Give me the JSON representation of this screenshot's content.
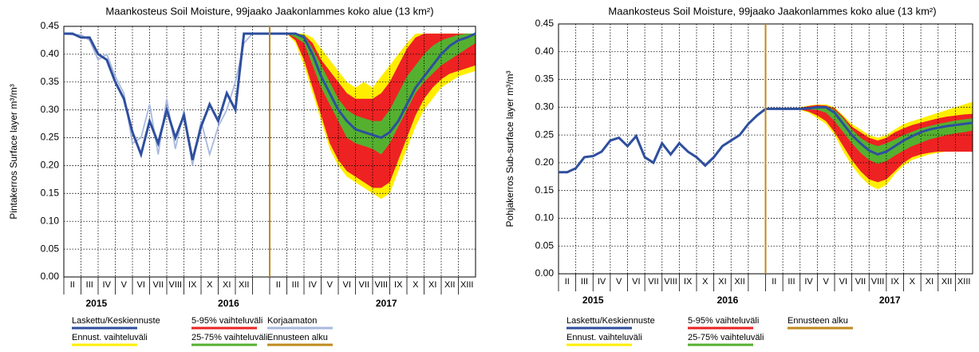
{
  "chart_data": [
    {
      "type": "line",
      "title": "Maankosteus Soil Moisture, 99jaako Jaakonlammes koko alue (13 km²)",
      "y_label": "Pintakerros Surface layer m³/m³",
      "ylim": [
        0,
        0.45
      ],
      "yticks": [
        {
          "value": 0,
          "label": "0.00"
        },
        {
          "value": 0.05,
          "label": "0.05"
        },
        {
          "value": 0.1,
          "label": "0.10"
        },
        {
          "value": 0.15,
          "label": "0.15"
        },
        {
          "value": 0.2,
          "label": "0.20"
        },
        {
          "value": 0.25,
          "label": "0.25"
        },
        {
          "value": 0.3,
          "label": "0.30"
        },
        {
          "value": 0.35,
          "label": "0.35"
        },
        {
          "value": 0.4,
          "label": "0.40"
        },
        {
          "value": 0.45,
          "label": "0.45"
        }
      ],
      "grid": true,
      "xlim": [
        0,
        24
      ],
      "categories": [
        "II",
        "III",
        "IV",
        "V",
        "VI",
        "VII",
        "VIII",
        "IX",
        "X",
        "XI",
        "XII",
        null,
        "II",
        "III",
        "IV",
        "V",
        "VI",
        "VII",
        "VIII",
        "IX",
        "X",
        "XI",
        "XII",
        "XIII"
      ],
      "year_labels": [
        "2015",
        "2016",
        "2017"
      ],
      "x": [
        0,
        0.5,
        1,
        1.5,
        2,
        2.5,
        3,
        3.5,
        4,
        4.5,
        5,
        5.5,
        6,
        6.5,
        7,
        7.5,
        8,
        8.5,
        9,
        9.5,
        10,
        10.5,
        11,
        11.5,
        12,
        12.5,
        13,
        13.5,
        14,
        14.5,
        15,
        15.5,
        16,
        16.5,
        17,
        17.5,
        18,
        18.5,
        19,
        19.5,
        20,
        20.5,
        21,
        21.5,
        22,
        22.5,
        23,
        23.5,
        24
      ],
      "series": [
        {
          "name": "Laskettu/Keskiennuste",
          "color": "#2e4f9e",
          "values": [
            0.437,
            0.437,
            0.43,
            0.43,
            0.4,
            0.39,
            0.35,
            0.32,
            0.26,
            0.22,
            0.28,
            0.24,
            0.3,
            0.25,
            0.29,
            0.21,
            0.27,
            0.31,
            0.28,
            0.33,
            0.3,
            0.437,
            0.437,
            0.437,
            0.437,
            0.437,
            0.437,
            0.437,
            0.43,
            0.4,
            0.36,
            0.33,
            0.3,
            0.28,
            0.265,
            0.26,
            0.255,
            0.25,
            0.26,
            0.28,
            0.31,
            0.34,
            0.36,
            0.38,
            0.4,
            0.415,
            0.425,
            0.43,
            0.437
          ]
        },
        {
          "name": "Korjaamaton",
          "color": "#a9b8de",
          "values": [
            0.437,
            0.435,
            0.435,
            0.425,
            0.39,
            0.4,
            0.36,
            0.33,
            0.24,
            0.25,
            0.31,
            0.22,
            0.32,
            0.23,
            0.3,
            0.2,
            0.28,
            0.22,
            0.27,
            0.3,
            0.35,
            0.42,
            0.437,
            null,
            null,
            null,
            null,
            null,
            null,
            null,
            null,
            null,
            null,
            null,
            null,
            null,
            null,
            null,
            null,
            null,
            null,
            null,
            null,
            null,
            null,
            null,
            null,
            null,
            null
          ]
        }
      ],
      "forecast_x": [
        12.5,
        13,
        13.5,
        14,
        14.5,
        15,
        15.5,
        16,
        16.5,
        17,
        17.5,
        18,
        18.5,
        19,
        19.5,
        20,
        20.5,
        21,
        21.5,
        22,
        22.5,
        23,
        23.5,
        24
      ],
      "bands": [
        {
          "name": "Ennust. vaihteluväli",
          "color": "#ffee00",
          "high": [
            0.437,
            0.437,
            0.437,
            0.437,
            0.43,
            0.41,
            0.39,
            0.37,
            0.35,
            0.34,
            0.35,
            0.34,
            0.36,
            0.38,
            0.4,
            0.42,
            0.437,
            0.437,
            0.437,
            0.437,
            0.437,
            0.437,
            0.437,
            0.437
          ],
          "low": [
            0.437,
            0.437,
            0.42,
            0.38,
            0.33,
            0.28,
            0.23,
            0.2,
            0.18,
            0.17,
            0.16,
            0.15,
            0.14,
            0.15,
            0.19,
            0.23,
            0.27,
            0.3,
            0.32,
            0.34,
            0.35,
            0.36,
            0.365,
            0.37
          ]
        },
        {
          "name": "5-95% vaihteluväli",
          "color": "#ee2222",
          "high": [
            0.437,
            0.437,
            0.437,
            0.435,
            0.42,
            0.39,
            0.37,
            0.35,
            0.33,
            0.32,
            0.32,
            0.32,
            0.33,
            0.35,
            0.38,
            0.41,
            0.43,
            0.437,
            0.437,
            0.437,
            0.437,
            0.437,
            0.437,
            0.437
          ],
          "low": [
            0.437,
            0.437,
            0.425,
            0.39,
            0.34,
            0.29,
            0.24,
            0.21,
            0.19,
            0.18,
            0.17,
            0.16,
            0.16,
            0.17,
            0.21,
            0.25,
            0.29,
            0.32,
            0.34,
            0.355,
            0.365,
            0.37,
            0.375,
            0.38
          ]
        },
        {
          "name": "25-75% vaihteluväli",
          "color": "#55b030",
          "high": [
            0.437,
            0.437,
            0.437,
            0.435,
            0.41,
            0.38,
            0.35,
            0.32,
            0.3,
            0.29,
            0.285,
            0.28,
            0.28,
            0.3,
            0.33,
            0.36,
            0.38,
            0.4,
            0.415,
            0.425,
            0.43,
            0.435,
            0.437,
            0.437
          ],
          "low": [
            0.437,
            0.437,
            0.43,
            0.42,
            0.38,
            0.34,
            0.31,
            0.28,
            0.25,
            0.24,
            0.235,
            0.23,
            0.22,
            0.24,
            0.27,
            0.3,
            0.33,
            0.35,
            0.365,
            0.38,
            0.39,
            0.4,
            0.41,
            0.42
          ]
        }
      ],
      "forecast_start": {
        "name": "Ennusteen alku",
        "color": "#c08a1e",
        "x": 12
      }
    },
    {
      "type": "line",
      "title": "Maankosteus Soil Moisture, 99jaako Jaakonlammes koko alue (13 km²)",
      "y_label": "Pohjakerros Sub-surface layer m³/m³",
      "ylim": [
        0,
        0.45
      ],
      "yticks": [
        {
          "value": 0,
          "label": "0.00"
        },
        {
          "value": 0.05,
          "label": "0.05"
        },
        {
          "value": 0.1,
          "label": "0.10"
        },
        {
          "value": 0.15,
          "label": "0.15"
        },
        {
          "value": 0.2,
          "label": "0.20"
        },
        {
          "value": 0.25,
          "label": "0.25"
        },
        {
          "value": 0.3,
          "label": "0.30"
        },
        {
          "value": 0.35,
          "label": "0.35"
        },
        {
          "value": 0.4,
          "label": "0.40"
        },
        {
          "value": 0.45,
          "label": "0.45"
        }
      ],
      "grid": true,
      "xlim": [
        0,
        24
      ],
      "categories": [
        "II",
        "III",
        "IV",
        "V",
        "VI",
        "VII",
        "VIII",
        "IX",
        "X",
        "XI",
        "XII",
        null,
        "II",
        "III",
        "IV",
        "V",
        "VI",
        "VII",
        "VIII",
        "IX",
        "X",
        "XI",
        "XII",
        "XIII"
      ],
      "year_labels": [
        "2015",
        "2016",
        "2017"
      ],
      "x": [
        0,
        0.5,
        1,
        1.5,
        2,
        2.5,
        3,
        3.5,
        4,
        4.5,
        5,
        5.5,
        6,
        6.5,
        7,
        7.5,
        8,
        8.5,
        9,
        9.5,
        10,
        10.5,
        11,
        11.5,
        12,
        12.5,
        13,
        13.5,
        14,
        14.5,
        15,
        15.5,
        16,
        16.5,
        17,
        17.5,
        18,
        18.5,
        19,
        19.5,
        20,
        20.5,
        21,
        21.5,
        22,
        22.5,
        23,
        23.5,
        24
      ],
      "series": [
        {
          "name": "Laskettu/Keskiennuste",
          "color": "#2e4f9e",
          "values": [
            0.183,
            0.183,
            0.19,
            0.21,
            0.212,
            0.22,
            0.24,
            0.245,
            0.23,
            0.248,
            0.21,
            0.2,
            0.235,
            0.215,
            0.235,
            0.22,
            0.21,
            0.195,
            0.21,
            0.23,
            0.24,
            0.25,
            0.27,
            0.285,
            0.297,
            0.297,
            0.297,
            0.297,
            0.297,
            0.298,
            0.3,
            0.3,
            0.29,
            0.27,
            0.25,
            0.235,
            0.222,
            0.215,
            0.22,
            0.23,
            0.24,
            0.248,
            0.255,
            0.26,
            0.263,
            0.266,
            0.268,
            0.27,
            0.272
          ]
        }
      ],
      "forecast_x": [
        12.5,
        13,
        13.5,
        14,
        14.5,
        15,
        15.5,
        16,
        16.5,
        17,
        17.5,
        18,
        18.5,
        19,
        19.5,
        20,
        20.5,
        21,
        21.5,
        22,
        22.5,
        23,
        23.5,
        24
      ],
      "bands": [
        {
          "name": "Ennust. vaihteluväli",
          "color": "#ffee00",
          "high": [
            0.297,
            0.297,
            0.297,
            0.3,
            0.303,
            0.305,
            0.305,
            0.3,
            0.285,
            0.27,
            0.26,
            0.25,
            0.245,
            0.25,
            0.26,
            0.27,
            0.275,
            0.28,
            0.285,
            0.29,
            0.295,
            0.3,
            0.305,
            0.31
          ],
          "low": [
            0.297,
            0.297,
            0.297,
            0.295,
            0.29,
            0.28,
            0.27,
            0.25,
            0.22,
            0.195,
            0.175,
            0.16,
            0.152,
            0.16,
            0.18,
            0.195,
            0.205,
            0.21,
            0.215,
            0.218,
            0.22,
            0.22,
            0.22,
            0.22
          ]
        },
        {
          "name": "5-95% vaihteluväli",
          "color": "#ee2222",
          "high": [
            0.297,
            0.297,
            0.297,
            0.299,
            0.302,
            0.304,
            0.303,
            0.298,
            0.283,
            0.265,
            0.255,
            0.245,
            0.24,
            0.245,
            0.255,
            0.262,
            0.268,
            0.272,
            0.276,
            0.28,
            0.283,
            0.285,
            0.287,
            0.288
          ],
          "low": [
            0.297,
            0.297,
            0.297,
            0.296,
            0.292,
            0.285,
            0.275,
            0.255,
            0.23,
            0.205,
            0.185,
            0.17,
            0.165,
            0.17,
            0.185,
            0.2,
            0.21,
            0.215,
            0.218,
            0.22,
            0.22,
            0.22,
            0.22,
            0.22
          ]
        },
        {
          "name": "25-75% vaihteluväli",
          "color": "#55b030",
          "high": [
            0.297,
            0.297,
            0.297,
            0.298,
            0.3,
            0.302,
            0.302,
            0.295,
            0.28,
            0.26,
            0.245,
            0.235,
            0.23,
            0.235,
            0.242,
            0.25,
            0.256,
            0.262,
            0.266,
            0.27,
            0.273,
            0.276,
            0.278,
            0.28
          ],
          "low": [
            0.297,
            0.297,
            0.297,
            0.297,
            0.296,
            0.295,
            0.29,
            0.275,
            0.255,
            0.235,
            0.218,
            0.205,
            0.198,
            0.203,
            0.213,
            0.222,
            0.23,
            0.236,
            0.242,
            0.246,
            0.25,
            0.253,
            0.255,
            0.258
          ]
        }
      ],
      "forecast_start": {
        "name": "Ennusteen alku",
        "color": "#c08a1e",
        "x": 12
      }
    }
  ]
}
